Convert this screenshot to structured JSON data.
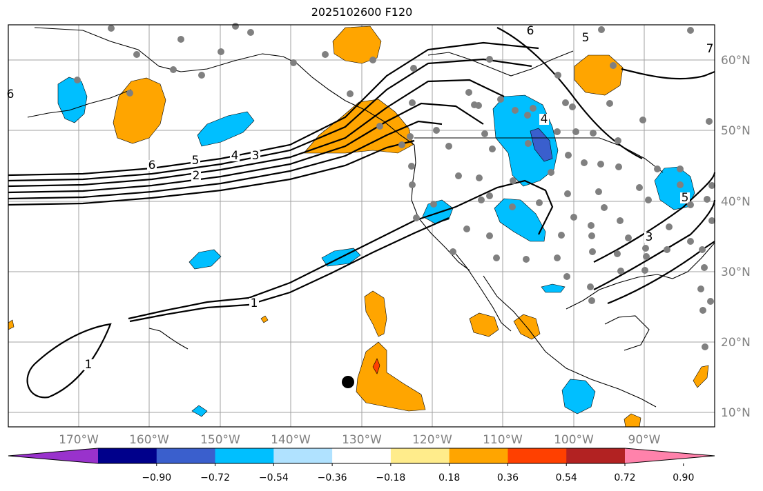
{
  "title": "2025102600 F120",
  "map": {
    "projection": "PlateCarree",
    "lon_range": [
      -180,
      -80
    ],
    "lat_range": [
      8,
      65
    ],
    "gridlines": true,
    "lon_ticks": [
      "170°W",
      "160°W",
      "150°W",
      "140°W",
      "130°W",
      "120°W",
      "110°W",
      "100°W",
      "90°W"
    ],
    "lat_ticks": [
      "60°N",
      "50°N",
      "40°N",
      "30°N",
      "20°N",
      "10°N"
    ],
    "contour_labels": [
      "6",
      "5",
      "4",
      "3",
      "2",
      "1",
      "1",
      "5",
      "6",
      "7",
      "6",
      "4",
      "3",
      "5"
    ],
    "colors": {
      "ocean": "#ffffff",
      "coast": "#000000",
      "grid": "#a0a0a0",
      "station": "#808080",
      "pos_036": "#ffa500",
      "pos_054": "#ff4000",
      "neg_036": "#00bfff",
      "neg_054": "#3a5fcd"
    }
  },
  "colorbar": {
    "ticks": [
      "−0.90",
      "−0.72",
      "−0.54",
      "−0.36",
      "−0.18",
      "0.18",
      "0.36",
      "0.54",
      "0.72",
      "0.90"
    ],
    "colors": [
      "#9932cc",
      "#00008b",
      "#3a5fcd",
      "#00bfff",
      "#b0e2ff",
      "#ffffff",
      "#ffec8b",
      "#ffa500",
      "#ff4000",
      "#b22222",
      "#ff82ab"
    ]
  }
}
